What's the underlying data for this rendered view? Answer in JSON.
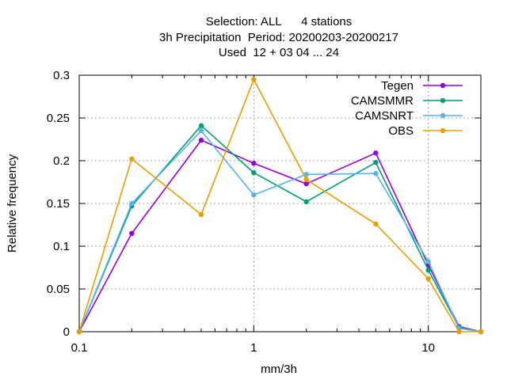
{
  "chart_data": {
    "type": "line",
    "title_lines": [
      "Selection: ALL      4 stations",
      "3h Precipitation  Period: 20200203-20200217",
      "Used  12 + 03 04 ... 24"
    ],
    "xlabel": "mm/3h",
    "ylabel": "Relative frequency",
    "x_scale": "log",
    "xlim": [
      0.1,
      20
    ],
    "ylim": [
      0,
      0.3
    ],
    "x_ticks": [
      0.1,
      1,
      10
    ],
    "x_tick_labels": [
      "0.1",
      "1",
      "10"
    ],
    "y_ticks": [
      0,
      0.05,
      0.1,
      0.15,
      0.2,
      0.25,
      0.3
    ],
    "y_tick_labels": [
      "0",
      "0.05",
      "0.1",
      "0.15",
      "0.2",
      "0.25",
      "0.3"
    ],
    "grid": true,
    "legend_position": "top-right",
    "x": [
      0.1,
      0.2,
      0.5,
      1,
      2,
      5,
      10,
      15,
      20
    ],
    "series": [
      {
        "name": "Tegen",
        "color": "#9400d3",
        "values": [
          0,
          0.115,
          0.224,
          0.197,
          0.173,
          0.209,
          0.078,
          0.006,
          0
        ]
      },
      {
        "name": "CAMSMMR",
        "color": "#009e73",
        "values": [
          0,
          0.147,
          0.241,
          0.186,
          0.152,
          0.198,
          0.072,
          0.005,
          0
        ]
      },
      {
        "name": "CAMSNRT",
        "color": "#56b4e9",
        "values": [
          0,
          0.15,
          0.235,
          0.16,
          0.184,
          0.185,
          0.082,
          0.004,
          0
        ]
      },
      {
        "name": "OBS",
        "color": "#e69f00",
        "values": [
          0,
          0.202,
          0.137,
          0.295,
          0.178,
          0.126,
          0.062,
          0,
          0
        ]
      }
    ]
  }
}
